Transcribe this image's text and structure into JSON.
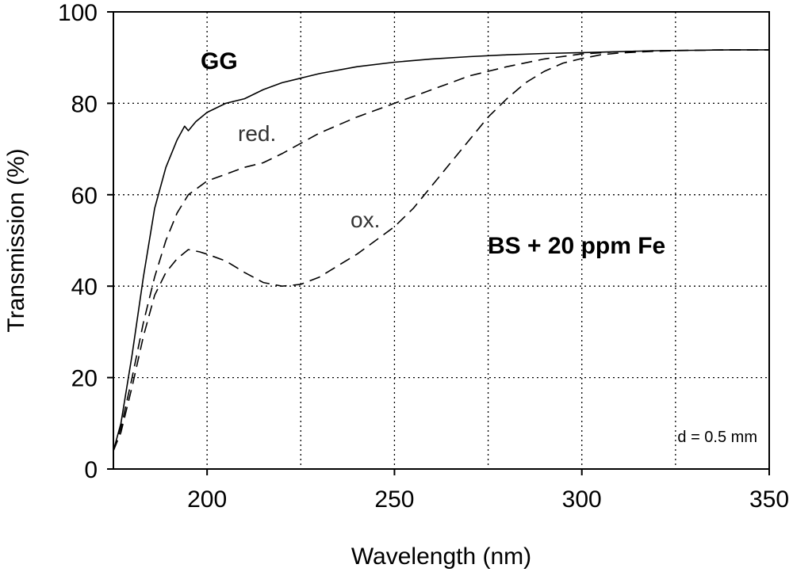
{
  "chart_data": {
    "type": "line",
    "xlabel": "Wavelength (nm)",
    "ylabel": "Transmission (%)",
    "xlim": [
      175,
      350
    ],
    "ylim": [
      0,
      100
    ],
    "xticks": [
      200,
      250,
      300,
      350
    ],
    "yticks": [
      0,
      20,
      40,
      60,
      80,
      100
    ],
    "grid": true,
    "annotations": {
      "gg": "GG",
      "red": "red.",
      "ox": "ox.",
      "sample": "BS + 20 ppm Fe",
      "thickness": "d = 0.5 mm"
    },
    "series": [
      {
        "name": "GG",
        "style": "solid",
        "x": [
          175,
          177,
          180,
          183,
          186,
          189,
          192,
          194,
          195,
          197,
          200,
          205,
          210,
          215,
          220,
          230,
          240,
          250,
          260,
          270,
          280,
          290,
          300,
          310,
          320,
          330,
          340,
          350
        ],
        "y": [
          4,
          10,
          25,
          42,
          57,
          66,
          72,
          75,
          74,
          76,
          78,
          80,
          81,
          83,
          84.5,
          86.5,
          88,
          89,
          89.7,
          90.2,
          90.6,
          90.9,
          91.1,
          91.3,
          91.5,
          91.6,
          91.7,
          91.7
        ]
      },
      {
        "name": "red.",
        "style": "dashed",
        "x": [
          175,
          177,
          180,
          183,
          186,
          189,
          192,
          195,
          200,
          205,
          210,
          215,
          220,
          230,
          240,
          250,
          260,
          270,
          280,
          290,
          300,
          310,
          320,
          330,
          340,
          350
        ],
        "y": [
          4,
          9,
          20,
          32,
          42,
          50,
          56,
          60,
          63,
          64.5,
          66,
          67,
          69,
          73.5,
          77,
          80,
          83,
          86,
          88,
          89.7,
          90.8,
          91.3,
          91.5,
          91.6,
          91.7,
          91.7
        ]
      },
      {
        "name": "ox.",
        "style": "dashed",
        "x": [
          175,
          177,
          180,
          183,
          186,
          189,
          192,
          195,
          198,
          200,
          205,
          210,
          215,
          220,
          225,
          230,
          235,
          240,
          245,
          250,
          255,
          260,
          265,
          270,
          275,
          280,
          285,
          290,
          295,
          300,
          305,
          310,
          320,
          330,
          340,
          350
        ],
        "y": [
          4,
          8,
          18,
          29,
          38,
          43,
          46,
          48,
          47.5,
          47,
          45.5,
          43,
          40.8,
          40,
          40.4,
          42,
          44.5,
          47,
          50,
          53,
          57,
          62,
          67,
          72,
          77,
          81,
          84.5,
          87,
          88.8,
          89.8,
          90.6,
          91,
          91.4,
          91.6,
          91.7,
          91.7
        ]
      }
    ]
  }
}
